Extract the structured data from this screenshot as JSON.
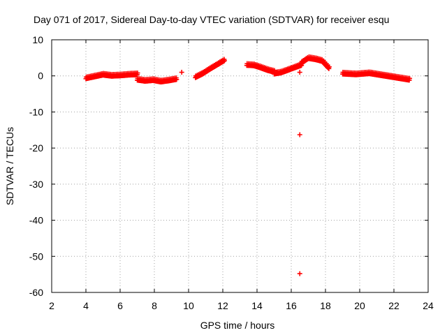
{
  "chart_data": {
    "type": "scatter",
    "title": "Day 071 of 2017, Sidereal Day-to-day VTEC variation (SDTVAR) for receiver esqu",
    "xlabel": "GPS time / hours",
    "ylabel": "SDTVAR / TECUs",
    "xlim": [
      2,
      24
    ],
    "ylim": [
      -60,
      10
    ],
    "xticks": [
      2,
      4,
      6,
      8,
      10,
      12,
      14,
      16,
      18,
      20,
      22,
      24
    ],
    "yticks": [
      10,
      0,
      -10,
      -20,
      -30,
      -40,
      -50,
      -60
    ],
    "grid": true,
    "series": [
      {
        "name": "SDTVAR",
        "color": "#ff0000",
        "marker": "plus",
        "segments": [
          {
            "x0": 4.0,
            "x1": 7.0,
            "y": [
              -0.8,
              -0.3,
              0.2,
              -0.1,
              0.0,
              0.2,
              0.3
            ]
          },
          {
            "x0": 7.0,
            "x1": 9.3,
            "y": [
              -1.2,
              -1.5,
              -1.3,
              -1.7,
              -1.4,
              -1.0
            ]
          },
          {
            "x0": 10.4,
            "x1": 12.1,
            "y": [
              -0.5,
              0.5,
              1.8,
              3.0,
              4.2
            ]
          },
          {
            "x0": 13.4,
            "x1": 15.0,
            "y": [
              2.9,
              2.8,
              2.2,
              1.5,
              1.0
            ]
          },
          {
            "x0": 15.0,
            "x1": 16.6,
            "y": [
              0.5,
              0.8,
              1.5,
              2.2,
              2.9
            ]
          },
          {
            "x0": 16.6,
            "x1": 18.2,
            "y": [
              3.5,
              4.8,
              4.5,
              4.0,
              2.0
            ]
          },
          {
            "x0": 19.0,
            "x1": 22.9,
            "y": [
              0.5,
              0.3,
              0.6,
              0.0,
              -0.6,
              -1.2
            ]
          }
        ],
        "points": [
          {
            "x": 9.6,
            "y": 1.0
          },
          {
            "x": 16.5,
            "y": 1.0
          },
          {
            "x": 16.5,
            "y": -16.3
          },
          {
            "x": 16.5,
            "y": -54.8
          }
        ]
      }
    ]
  }
}
